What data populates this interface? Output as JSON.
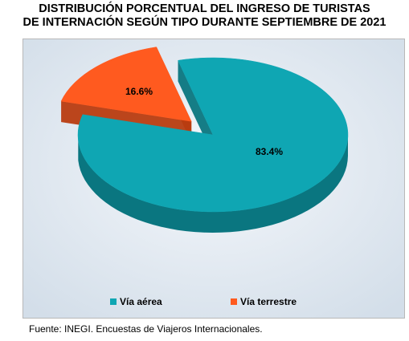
{
  "chart_data": {
    "type": "pie",
    "title_lines": [
      "DISTRIBUCIÓN PORCENTUAL DEL INGRESO DE TURISTAS",
      "DE INTERNACIÓN SEGÚN TIPO DURANTE SEPTIEMBRE DE 2021"
    ],
    "slices": [
      {
        "label": "Vía aérea",
        "value": 83.4,
        "display": "83.4%",
        "color": "#0fa6b3",
        "side_color": "#0a7680"
      },
      {
        "label": "Vía terrestre",
        "value": 16.6,
        "display": "16.6%",
        "color": "#ff5a1f",
        "side_color": "#b83c10"
      }
    ],
    "legend_position": "bottom",
    "style": "3d-exploded",
    "background": "#dde6f0"
  },
  "source": "Fuente: INEGI. Encuestas de Viajeros Internacionales."
}
